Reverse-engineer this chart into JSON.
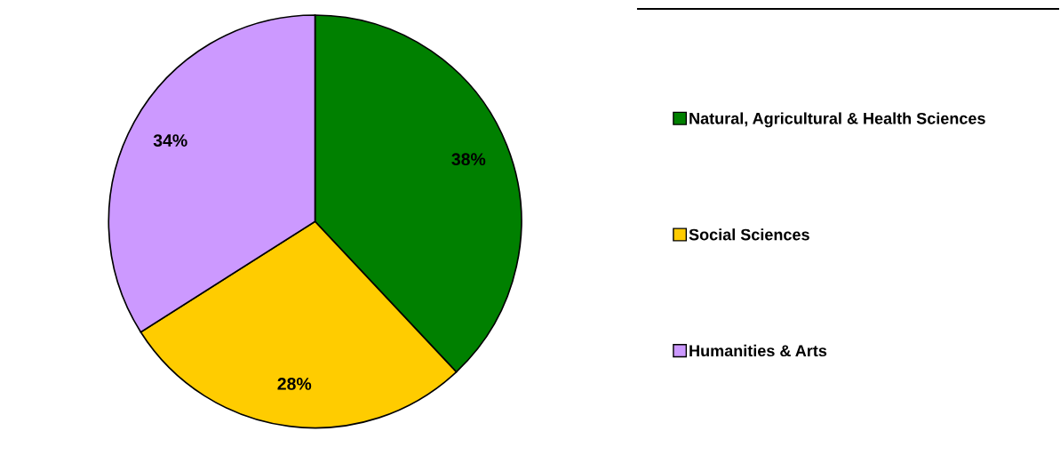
{
  "chart_data": {
    "type": "pie",
    "categories": [
      "Natural, Agricultural & Health Sciences",
      "Social Sciences",
      "Humanities & Arts"
    ],
    "values": [
      38,
      28,
      34
    ],
    "colors": [
      "#008000",
      "#ffcc00",
      "#cc99ff"
    ],
    "value_labels": [
      "38%",
      "28%",
      "34%"
    ],
    "legend": "right"
  }
}
